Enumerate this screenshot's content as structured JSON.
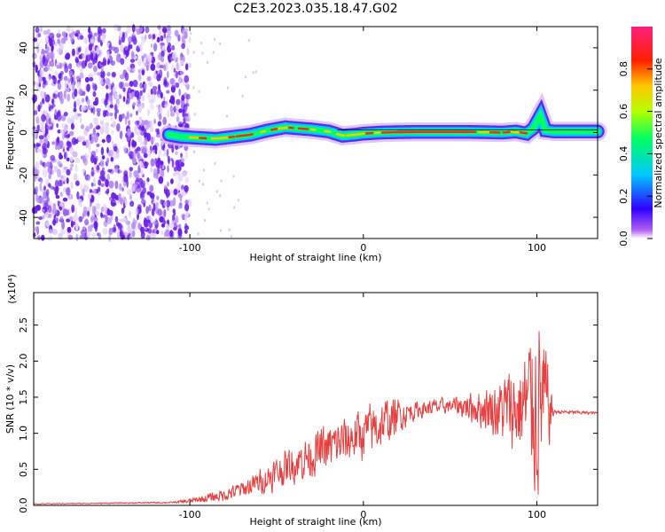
{
  "title": "C2E3.2023.035.18.47.G02",
  "colors": {
    "signal_line": "#e84040",
    "ridge_line": "#000000",
    "scatter_purple": "#6a1de8",
    "colorbar_stops": [
      "#a020f0",
      "#0000ff",
      "#00c8ff",
      "#00ff64",
      "#b4ff00",
      "#ffc800",
      "#ff0000",
      "#ff2080"
    ]
  },
  "chart_data": [
    {
      "type": "heatmap",
      "xlabel": "Height of straight line (km)",
      "ylabel": "Frequency (Hz)",
      "xlim": [
        -190,
        135
      ],
      "ylim": [
        -50,
        50
      ],
      "xticks": [
        -100,
        0,
        100
      ],
      "yticks": [
        -40,
        -20,
        0,
        20,
        40
      ],
      "colorbar": {
        "label": "Normalized spectral amplitude",
        "range": [
          0.0,
          1.0
        ],
        "ticks": [
          "0.0",
          "0.2",
          "0.4",
          "0.6",
          "0.8"
        ]
      },
      "ridge": {
        "x": [
          -112,
          -105,
          -95,
          -85,
          -75,
          -65,
          -55,
          -45,
          -38,
          -30,
          -20,
          -12,
          -5,
          0,
          10,
          20,
          30,
          40,
          50,
          60,
          70,
          80,
          88,
          94,
          98,
          102,
          105,
          110,
          120,
          135
        ],
        "y": [
          -1,
          -2,
          -2.5,
          -3,
          -2,
          -1,
          1,
          2.5,
          2,
          1.5,
          0.5,
          -1.5,
          -1,
          -0.5,
          0,
          0.2,
          0.3,
          0.3,
          0.3,
          0.3,
          0.2,
          0,
          0.5,
          -0.5,
          2,
          8,
          1,
          0.5,
          0.5,
          0.5
        ]
      }
    },
    {
      "type": "line",
      "xlabel": "Height of straight line (km)",
      "ylabel": "SNR (10 * v/v)",
      "multiplier": "(x10⁴)",
      "xlim": [
        -190,
        135
      ],
      "ylim": [
        0,
        2.95
      ],
      "xticks": [
        -100,
        0,
        100
      ],
      "yticks": [
        "0.0",
        "0.5",
        "1.0",
        "1.5",
        "2.0",
        "2.5"
      ],
      "envelope": {
        "x": [
          -190,
          -150,
          -110,
          -100,
          -90,
          -80,
          -70,
          -60,
          -50,
          -40,
          -30,
          -20,
          -10,
          0,
          10,
          20,
          30,
          40,
          50,
          60,
          70,
          80,
          90,
          95,
          100,
          104,
          107,
          110,
          120,
          135
        ],
        "y": [
          0.02,
          0.03,
          0.04,
          0.06,
          0.1,
          0.15,
          0.22,
          0.32,
          0.45,
          0.58,
          0.7,
          0.8,
          0.9,
          1.0,
          1.12,
          1.25,
          1.32,
          1.36,
          1.38,
          1.38,
          1.35,
          1.32,
          1.35,
          1.4,
          1.45,
          1.4,
          1.32,
          1.3,
          1.29,
          1.28
        ]
      },
      "noise_amplitude": {
        "x": [
          -190,
          -110,
          -90,
          -70,
          -50,
          -30,
          -10,
          10,
          30,
          50,
          70,
          85,
          95,
          100,
          104,
          107,
          110,
          135
        ],
        "a": [
          0.005,
          0.01,
          0.06,
          0.12,
          0.22,
          0.3,
          0.35,
          0.35,
          0.12,
          0.1,
          0.3,
          0.55,
          0.9,
          1.3,
          1.0,
          0.5,
          0.03,
          0.02
        ]
      }
    }
  ]
}
